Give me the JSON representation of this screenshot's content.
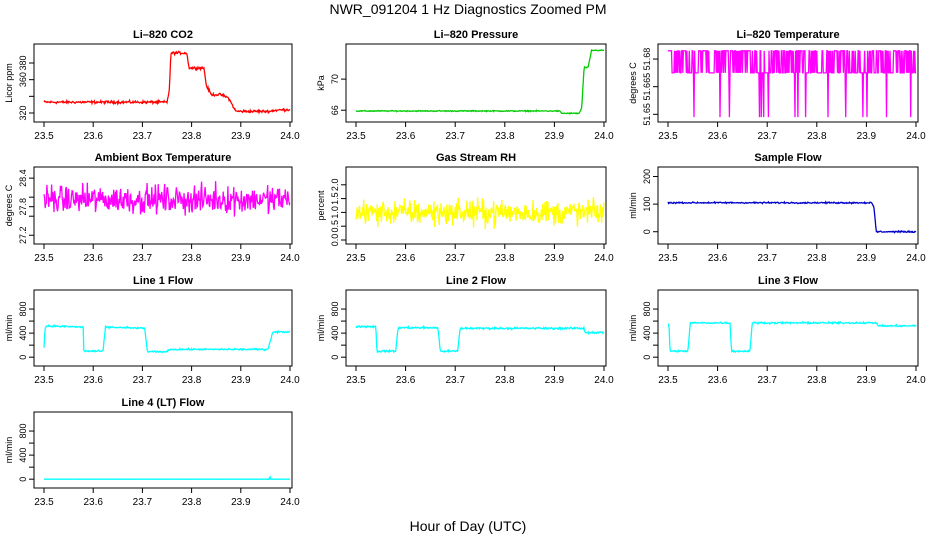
{
  "title": "NWR_091204  1 Hz Diagnostics Zoomed PM",
  "xlabel": "Hour of Day (UTC)",
  "chart_data": [
    {
      "type": "line",
      "title": "Li–820 CO2",
      "ylabel": "Licor ppm",
      "color": "#ff0000",
      "xlim": [
        23.5,
        24.0
      ],
      "ylim": [
        314,
        398
      ],
      "yticks": [
        320,
        340,
        360,
        380
      ],
      "yticklabels": [
        "320",
        "",
        "360",
        "380"
      ],
      "xticks": [
        23.5,
        23.6,
        23.7,
        23.8,
        23.9,
        24.0
      ],
      "x": [
        23.5,
        23.63,
        23.68,
        23.745,
        23.75,
        23.755,
        23.758,
        23.79,
        23.795,
        23.8,
        23.825,
        23.83,
        23.84,
        23.86,
        23.875,
        23.89,
        23.9,
        23.93,
        23.955,
        23.96,
        23.965,
        23.99
      ],
      "y": [
        333,
        333,
        333,
        333,
        333,
        349,
        392,
        392,
        374,
        374,
        374,
        353,
        342,
        342,
        338,
        322,
        322,
        322,
        322,
        322,
        323,
        324
      ],
      "noise": 1.2
    },
    {
      "type": "line",
      "title": "Li–820 Pressure",
      "ylabel": "kPa",
      "color": "#00cc00",
      "xlim": [
        23.5,
        24.0
      ],
      "ylim": [
        65,
        74
      ],
      "yticks": [
        66,
        70
      ],
      "yticklabels": [
        "66",
        "70"
      ],
      "xticks": [
        23.5,
        23.6,
        23.7,
        23.8,
        23.9,
        24.0
      ],
      "x": [
        23.5,
        23.91,
        23.915,
        23.95,
        23.955,
        23.96,
        23.968,
        23.975,
        24.0
      ],
      "y": [
        65.9,
        65.9,
        65.6,
        65.6,
        66.3,
        71.5,
        71.5,
        73.7,
        73.7
      ],
      "noise": 0.05
    },
    {
      "type": "line",
      "title": "Li–820 Temperature",
      "ylabel": "degrees C",
      "color": "#ff00ff",
      "xlim": [
        23.5,
        24.0
      ],
      "ylim": [
        51.648,
        51.686
      ],
      "yticks": [
        51.65,
        51.665,
        51.68
      ],
      "yticklabels": [
        "51.65",
        "51.665",
        "51.68"
      ],
      "xticks": [
        23.5,
        23.6,
        23.7,
        23.8,
        23.9,
        24.0
      ],
      "levels": [
        51.6725,
        51.6845,
        51.6725,
        51.6845,
        51.6485
      ],
      "noise": 0
    },
    {
      "type": "line",
      "title": "Ambient Box Temperature",
      "ylabel": "degrees C",
      "color": "#ff00ff",
      "xlim": [
        23.5,
        24.0
      ],
      "ylim": [
        27.1,
        28.55
      ],
      "yticks": [
        27.2,
        27.6,
        27.8,
        28.0,
        28.4
      ],
      "yticklabels": [
        "27.2",
        "",
        "27.8",
        "",
        "28.4"
      ],
      "xticks": [
        23.5,
        23.6,
        23.7,
        23.8,
        23.9,
        24.0
      ],
      "x": [
        23.5,
        24.0
      ],
      "y": [
        27.95,
        27.95
      ],
      "noise": 0.22
    },
    {
      "type": "line",
      "title": "Gas Stream RH",
      "ylabel": "percent",
      "color": "#ffff00",
      "xlim": [
        23.5,
        24.0
      ],
      "ylim": [
        0,
        2.5
      ],
      "yticks": [
        0.0,
        0.5,
        1.0,
        1.5,
        2.0
      ],
      "yticklabels": [
        "0.0",
        "0.5",
        "1.0",
        "1.5",
        "2.0"
      ],
      "xticks": [
        23.5,
        23.6,
        23.7,
        23.8,
        23.9,
        24.0
      ],
      "x": [
        23.5,
        24.0
      ],
      "y": [
        1.0,
        1.0
      ],
      "noise": 0.35
    },
    {
      "type": "line",
      "title": "Sample Flow",
      "ylabel": "ml/min",
      "color": "#0000cc",
      "xlim": [
        23.5,
        24.0
      ],
      "ylim": [
        -30,
        220
      ],
      "yticks": [
        0,
        100,
        200
      ],
      "yticklabels": [
        "0",
        "100",
        "200"
      ],
      "xticks": [
        23.5,
        23.6,
        23.7,
        23.8,
        23.9,
        24.0
      ],
      "x": [
        23.5,
        23.91,
        23.915,
        23.92,
        24.0
      ],
      "y": [
        105,
        105,
        90,
        0,
        0
      ],
      "noise": 2
    },
    {
      "type": "line",
      "title": "Line 1 Flow",
      "ylabel": "ml/min",
      "color": "#00ffff",
      "xlim": [
        23.5,
        24.0
      ],
      "ylim": [
        -80,
        1050
      ],
      "yticks": [
        0,
        200,
        400,
        600,
        800
      ],
      "yticklabels": [
        "0",
        "",
        "400",
        "",
        "800"
      ],
      "xticks": [
        23.5,
        23.6,
        23.7,
        23.8,
        23.9,
        24.0
      ],
      "x": [
        23.5,
        23.502,
        23.505,
        23.58,
        23.581,
        23.62,
        23.625,
        23.705,
        23.71,
        23.75,
        23.755,
        23.955,
        23.96,
        23.965,
        24.0
      ],
      "y": [
        150,
        480,
        520,
        500,
        100,
        100,
        500,
        480,
        90,
        90,
        130,
        130,
        270,
        420,
        420
      ],
      "noise": 10
    },
    {
      "type": "line",
      "title": "Line 2 Flow",
      "ylabel": "ml/min",
      "color": "#00ffff",
      "xlim": [
        23.5,
        24.0
      ],
      "ylim": [
        -80,
        1050
      ],
      "yticks": [
        0,
        200,
        400,
        600,
        800
      ],
      "yticklabels": [
        "0",
        "",
        "400",
        "",
        "800"
      ],
      "xticks": [
        23.5,
        23.6,
        23.7,
        23.8,
        23.9,
        24.0
      ],
      "x": [
        23.5,
        23.54,
        23.542,
        23.58,
        23.585,
        23.665,
        23.67,
        23.705,
        23.71,
        23.96,
        23.962,
        24.0
      ],
      "y": [
        510,
        510,
        100,
        100,
        490,
        490,
        100,
        100,
        480,
        480,
        410,
        410
      ],
      "noise": 12
    },
    {
      "type": "line",
      "title": "Line 3 Flow",
      "ylabel": "ml/min",
      "color": "#00ffff",
      "xlim": [
        23.5,
        24.0
      ],
      "ylim": [
        -80,
        1050
      ],
      "yticks": [
        0,
        200,
        400,
        600,
        800
      ],
      "yticklabels": [
        "0",
        "",
        "400",
        "",
        "800"
      ],
      "xticks": [
        23.5,
        23.6,
        23.7,
        23.8,
        23.9,
        24.0
      ],
      "x": [
        23.5,
        23.502,
        23.504,
        23.54,
        23.545,
        23.625,
        23.628,
        23.665,
        23.67,
        23.92,
        23.925,
        24.0
      ],
      "y": [
        550,
        550,
        100,
        100,
        570,
        570,
        100,
        100,
        570,
        570,
        520,
        520
      ],
      "noise": 10
    },
    {
      "type": "line",
      "title": "Line 4 (LT) Flow",
      "ylabel": "ml/min",
      "color": "#00ffff",
      "xlim": [
        23.5,
        24.0
      ],
      "ylim": [
        -80,
        1050
      ],
      "yticks": [
        0,
        200,
        400,
        600,
        800
      ],
      "yticklabels": [
        "0",
        "",
        "400",
        "",
        "800"
      ],
      "xticks": [
        23.5,
        23.6,
        23.7,
        23.8,
        23.9,
        24.0
      ],
      "x": [
        23.5,
        23.958,
        23.959,
        23.96,
        24.0
      ],
      "y": [
        0,
        0,
        80,
        0,
        0
      ],
      "noise": 1
    }
  ]
}
